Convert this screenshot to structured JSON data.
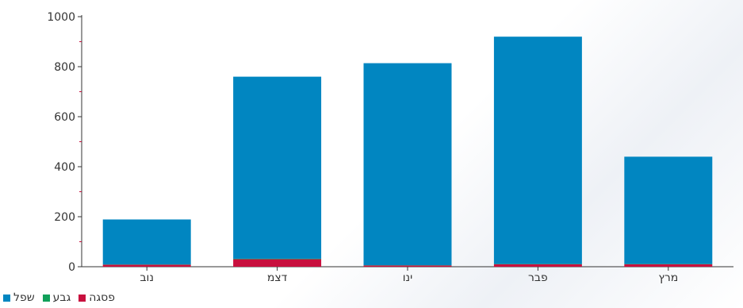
{
  "chart_data": {
    "type": "bar",
    "stacked": true,
    "categories": [
      "נוב",
      "דצמ",
      "ינו",
      "פבר",
      "מרץ"
    ],
    "series": [
      {
        "name": "פסגה",
        "color": "#c8103e",
        "values": [
          8,
          30,
          5,
          10,
          10
        ]
      },
      {
        "name": "גבע",
        "color": "#11a05a",
        "values": [
          1,
          2,
          1,
          1,
          1
        ]
      },
      {
        "name": "שפל",
        "color": "#0186c1",
        "values": [
          180,
          728,
          808,
          909,
          429
        ]
      }
    ],
    "ylim": [
      0,
      1000
    ],
    "yticks": [
      0,
      200,
      400,
      600,
      800,
      1000
    ],
    "grid": false,
    "legend_position": "bottom-left"
  }
}
